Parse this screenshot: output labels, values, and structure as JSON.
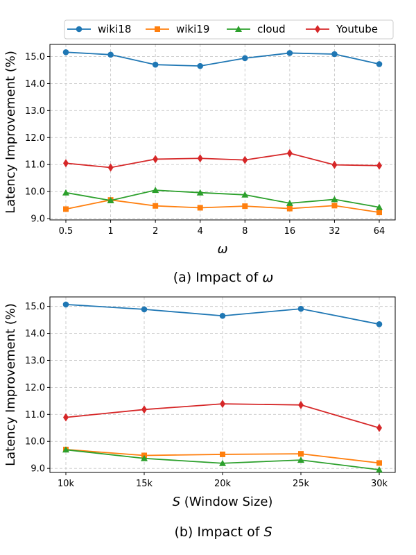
{
  "colors": {
    "wiki18": "#1f77b4",
    "wiki19": "#ff7f0e",
    "cloud": "#2ca02c",
    "Youtube": "#d62728"
  },
  "legend": {
    "placement": "top-center",
    "entries": [
      {
        "name": "wiki18",
        "marker": "circle"
      },
      {
        "name": "wiki19",
        "marker": "square"
      },
      {
        "name": "cloud",
        "marker": "triangle"
      },
      {
        "name": "Youtube",
        "marker": "diamond"
      }
    ]
  },
  "chart_data": [
    {
      "type": "line",
      "caption_prefix": "(a) Impact of ",
      "caption_symbol": "ω",
      "caption_suffix": "",
      "xlabel_symbol": "ω",
      "xlabel_rest": "",
      "ylabel": "Latency Improvement (%)",
      "categories": [
        "0.5",
        "1",
        "2",
        "4",
        "8",
        "16",
        "32",
        "64"
      ],
      "ylim": [
        8.95,
        15.45
      ],
      "yticks": [
        "9.0",
        "10.0",
        "11.0",
        "12.0",
        "13.0",
        "14.0",
        "15.0"
      ],
      "grid": true,
      "series": [
        {
          "name": "wiki18",
          "values": [
            15.16,
            15.07,
            14.7,
            14.65,
            14.94,
            15.13,
            15.09,
            14.72
          ]
        },
        {
          "name": "wiki19",
          "values": [
            9.35,
            9.69,
            9.47,
            9.4,
            9.46,
            9.37,
            9.48,
            9.23
          ]
        },
        {
          "name": "cloud",
          "values": [
            9.96,
            9.67,
            10.05,
            9.96,
            9.88,
            9.57,
            9.71,
            9.42
          ]
        },
        {
          "name": "Youtube",
          "values": [
            11.05,
            10.89,
            11.2,
            11.23,
            11.17,
            11.42,
            10.99,
            10.96
          ]
        }
      ]
    },
    {
      "type": "line",
      "caption_prefix": "(b) Impact of ",
      "caption_symbol": "S",
      "caption_suffix": "",
      "xlabel_symbol": "S",
      "xlabel_rest": " (Window Size)",
      "ylabel": "Latency Improvement (%)",
      "categories": [
        "10k",
        "15k",
        "20k",
        "25k",
        "30k"
      ],
      "ylim": [
        8.85,
        15.35
      ],
      "yticks": [
        "9.0",
        "10.0",
        "11.0",
        "12.0",
        "13.0",
        "14.0",
        "15.0"
      ],
      "grid": true,
      "series": [
        {
          "name": "wiki18",
          "values": [
            15.07,
            14.89,
            14.65,
            14.91,
            14.34
          ]
        },
        {
          "name": "wiki19",
          "values": [
            9.7,
            9.48,
            9.52,
            9.54,
            9.2
          ]
        },
        {
          "name": "cloud",
          "values": [
            9.69,
            9.37,
            9.19,
            9.31,
            8.95
          ]
        },
        {
          "name": "Youtube",
          "values": [
            10.89,
            11.18,
            11.39,
            11.35,
            10.5
          ]
        }
      ]
    }
  ]
}
